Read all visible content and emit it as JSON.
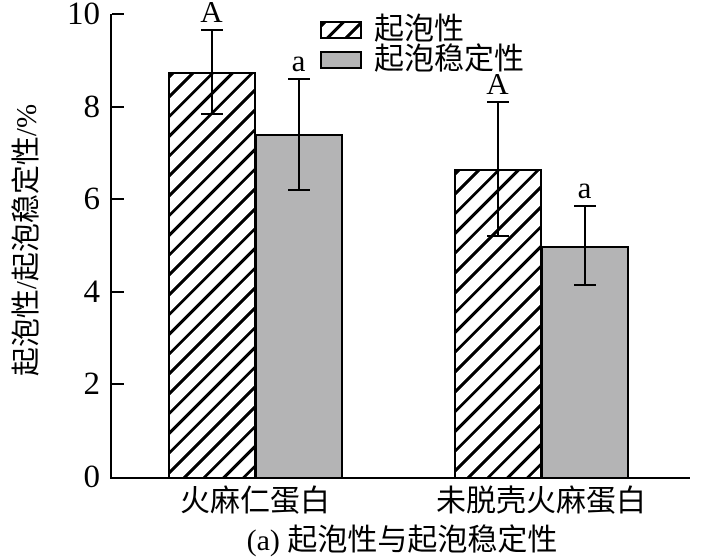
{
  "figure": {
    "caption": "(a) 起泡性与起泡稳定性",
    "y_axis_label": "起泡性/起泡稳定性/%"
  },
  "colors": {
    "bar_gray": "#b4b4b5",
    "axis_black": "#000000",
    "background": "#ffffff"
  },
  "legend": {
    "items": [
      {
        "label": "起泡性",
        "swatch": "hatched"
      },
      {
        "label": "起泡稳定性",
        "swatch": "gray"
      }
    ]
  },
  "chart_data": {
    "type": "bar",
    "title": "(a) 起泡性与起泡稳定性",
    "xlabel": "",
    "ylabel": "起泡性/起泡稳定性/%",
    "ylim": [
      0,
      10
    ],
    "yticks": [
      0,
      2,
      4,
      6,
      8,
      10
    ],
    "grid": false,
    "legend_position": "top-right",
    "categories": [
      "火麻仁蛋白",
      "未脱壳火麻蛋白"
    ],
    "series": [
      {
        "name": "起泡性",
        "style": "hatched",
        "values": [
          8.75,
          6.65
        ],
        "errors": [
          0.9,
          1.45
        ],
        "sig_letters": [
          "A",
          "A"
        ]
      },
      {
        "name": "起泡稳定性",
        "style": "gray",
        "values": [
          7.4,
          5.0
        ],
        "errors": [
          1.2,
          0.85
        ],
        "sig_letters": [
          "a",
          "a"
        ]
      }
    ]
  }
}
